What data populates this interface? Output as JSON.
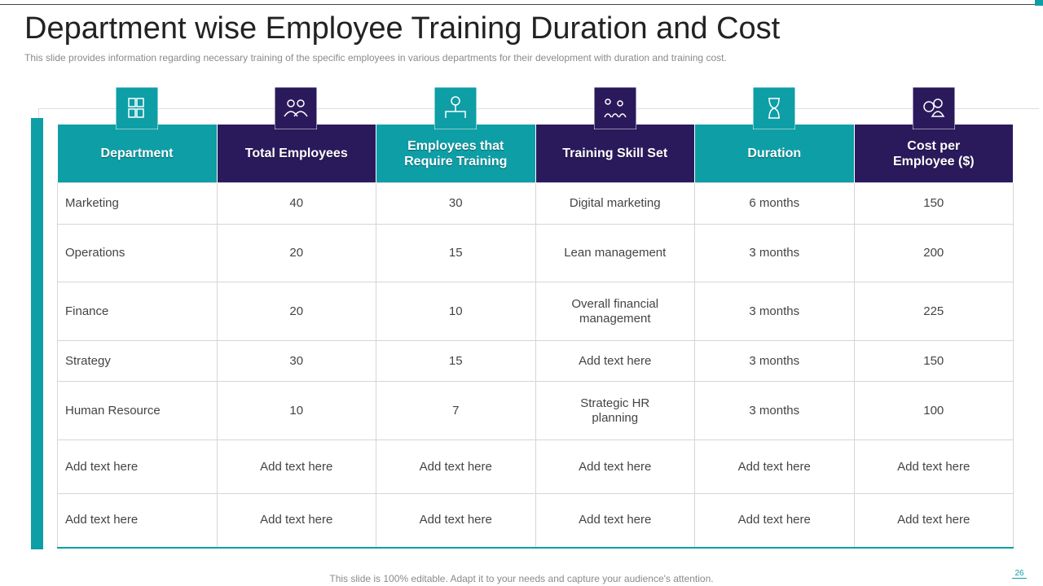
{
  "header": {
    "title": "Department wise Employee Training Duration and Cost",
    "subtitle": "This slide provides  information  regarding  necessary training of the specific employees in various  departments for their development  with duration and training cost."
  },
  "table": {
    "headers": [
      "Department",
      "Total Employees",
      "Employees that Require Training",
      "Training Skill Set",
      "Duration",
      "Cost  per Employee ($)"
    ],
    "rows": [
      [
        "Marketing",
        "40",
        "30",
        "Digital marketing",
        "6 months",
        "150"
      ],
      [
        "Operations",
        "20",
        "15",
        "Lean management",
        "3 months",
        "200"
      ],
      [
        "Finance",
        "20",
        "10",
        "Overall financial management",
        "3 months",
        "225"
      ],
      [
        "Strategy",
        "30",
        "15",
        "Add text here",
        "3 months",
        "150"
      ],
      [
        "Human Resource",
        "10",
        "7",
        "Strategic HR planning",
        "3 months",
        "100"
      ],
      [
        "Add text here",
        "Add text here",
        "Add text here",
        "Add text here",
        "Add text here",
        "Add text here"
      ],
      [
        "Add text here",
        "Add text here",
        "Add text here",
        "Add text here",
        "Add text here",
        "Add text here"
      ]
    ]
  },
  "footer": {
    "note": "This slide is 100% editable. Adapt it to your needs and capture your audience's attention.",
    "page_number": "26"
  }
}
